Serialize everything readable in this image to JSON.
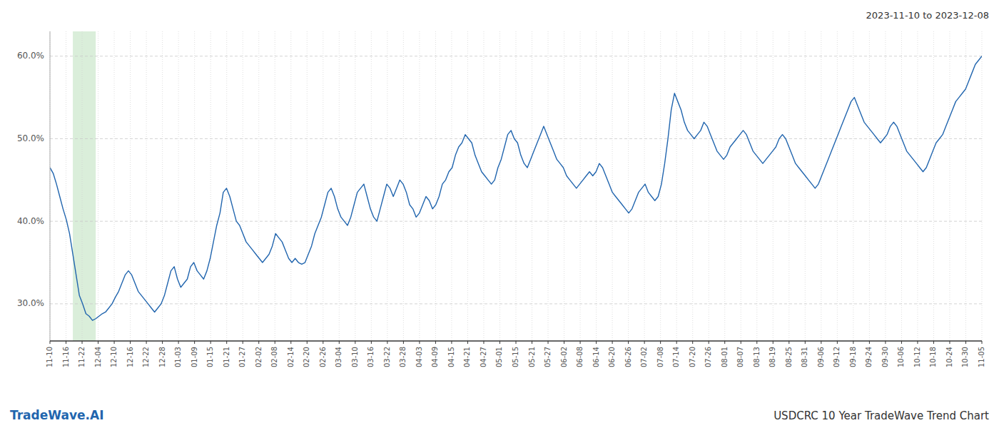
{
  "chart_data": {
    "type": "line",
    "title": "USDCRC 10 Year TradeWave Trend Chart",
    "subtitle": "2023-11-10 to 2023-12-08",
    "annotations": [
      "TradeWave.AI"
    ],
    "color": "#2165ae",
    "grid": true,
    "highlight": {
      "x": [
        7,
        14
      ],
      "color": "#daeeda"
    },
    "ylim": [
      25.5,
      63
    ],
    "yticks": [
      {
        "value": 30.0,
        "label": "30.0%"
      },
      {
        "value": 40.0,
        "label": "40.0%"
      },
      {
        "value": 50.0,
        "label": "50.0%"
      },
      {
        "value": 60.0,
        "label": "60.0%"
      }
    ],
    "xlim": [
      0,
      285
    ],
    "xticks": [
      {
        "value": 0,
        "label": "11-10"
      },
      {
        "value": 4.913793,
        "label": "11-16"
      },
      {
        "value": 9.827586,
        "label": "11-22"
      },
      {
        "value": 14.741379,
        "label": "12-04"
      },
      {
        "value": 19.655172,
        "label": "12-10"
      },
      {
        "value": 24.568966,
        "label": "12-16"
      },
      {
        "value": 29.482759,
        "label": "12-22"
      },
      {
        "value": 34.396552,
        "label": "12-28"
      },
      {
        "value": 39.310345,
        "label": "01-03"
      },
      {
        "value": 44.224138,
        "label": "01-09"
      },
      {
        "value": 49.137931,
        "label": "01-15"
      },
      {
        "value": 54.051724,
        "label": "01-21"
      },
      {
        "value": 58.965517,
        "label": "01-27"
      },
      {
        "value": 63.87931,
        "label": "02-02"
      },
      {
        "value": 68.793103,
        "label": "02-08"
      },
      {
        "value": 73.706897,
        "label": "02-14"
      },
      {
        "value": 78.62069,
        "label": "02-20"
      },
      {
        "value": 83.534483,
        "label": "02-26"
      },
      {
        "value": 88.448276,
        "label": "03-04"
      },
      {
        "value": 93.362069,
        "label": "03-10"
      },
      {
        "value": 98.275862,
        "label": "03-16"
      },
      {
        "value": 103.189655,
        "label": "03-22"
      },
      {
        "value": 108.103448,
        "label": "03-28"
      },
      {
        "value": 113.017241,
        "label": "04-03"
      },
      {
        "value": 117.931034,
        "label": "04-09"
      },
      {
        "value": 122.844828,
        "label": "04-15"
      },
      {
        "value": 127.758621,
        "label": "04-21"
      },
      {
        "value": 132.672414,
        "label": "04-27"
      },
      {
        "value": 137.586207,
        "label": "05-01"
      },
      {
        "value": 142.5,
        "label": "05-15"
      },
      {
        "value": 147.413793,
        "label": "05-21"
      },
      {
        "value": 152.327586,
        "label": "05-27"
      },
      {
        "value": 157.241379,
        "label": "06-02"
      },
      {
        "value": 162.155172,
        "label": "06-08"
      },
      {
        "value": 167.068966,
        "label": "06-14"
      },
      {
        "value": 171.982759,
        "label": "06-20"
      },
      {
        "value": 176.896552,
        "label": "06-26"
      },
      {
        "value": 181.810345,
        "label": "07-02"
      },
      {
        "value": 186.724138,
        "label": "07-08"
      },
      {
        "value": 191.637931,
        "label": "07-14"
      },
      {
        "value": 196.551724,
        "label": "07-20"
      },
      {
        "value": 201.465517,
        "label": "07-26"
      },
      {
        "value": 206.37931,
        "label": "08-01"
      },
      {
        "value": 211.293103,
        "label": "08-07"
      },
      {
        "value": 216.206897,
        "label": "08-13"
      },
      {
        "value": 221.12069,
        "label": "08-19"
      },
      {
        "value": 226.034483,
        "label": "08-25"
      },
      {
        "value": 230.948276,
        "label": "08-31"
      },
      {
        "value": 235.862069,
        "label": "09-06"
      },
      {
        "value": 240.775862,
        "label": "09-12"
      },
      {
        "value": 245.689655,
        "label": "09-18"
      },
      {
        "value": 250.603448,
        "label": "09-24"
      },
      {
        "value": 255.517241,
        "label": "09-30"
      },
      {
        "value": 260.431034,
        "label": "10-06"
      },
      {
        "value": 265.344828,
        "label": "10-12"
      },
      {
        "value": 270.258621,
        "label": "10-18"
      },
      {
        "value": 275.172414,
        "label": "10-24"
      },
      {
        "value": 280.086207,
        "label": "10-30"
      },
      {
        "value": 285,
        "label": "11-05"
      }
    ],
    "values": [
      46.5,
      45.8,
      44.5,
      43.0,
      41.5,
      40.2,
      38.5,
      36.0,
      33.5,
      31.0,
      30.0,
      28.8,
      28.5,
      28.0,
      28.2,
      28.5,
      28.8,
      29.0,
      29.5,
      30.0,
      30.8,
      31.5,
      32.5,
      33.5,
      34.0,
      33.5,
      32.5,
      31.5,
      31.0,
      30.5,
      30.0,
      29.5,
      29.0,
      29.5,
      30.0,
      31.0,
      32.5,
      34.0,
      34.5,
      33.0,
      32.0,
      32.5,
      33.0,
      34.5,
      35.0,
      34.0,
      33.5,
      33.0,
      34.0,
      35.5,
      37.5,
      39.5,
      41.0,
      43.5,
      44.0,
      43.0,
      41.5,
      40.0,
      39.5,
      38.5,
      37.5,
      37.0,
      36.5,
      36.0,
      35.5,
      35.0,
      35.5,
      36.0,
      37.0,
      38.5,
      38.0,
      37.5,
      36.5,
      35.5,
      35.0,
      35.5,
      35.0,
      34.8,
      35.0,
      36.0,
      37.0,
      38.5,
      39.5,
      40.5,
      42.0,
      43.5,
      44.0,
      43.0,
      41.5,
      40.5,
      40.0,
      39.5,
      40.5,
      42.0,
      43.5,
      44.0,
      44.5,
      43.0,
      41.5,
      40.5,
      40.0,
      41.5,
      43.0,
      44.5,
      44.0,
      43.0,
      44.0,
      45.0,
      44.5,
      43.5,
      42.0,
      41.5,
      40.5,
      41.0,
      42.0,
      43.0,
      42.5,
      41.5,
      42.0,
      43.0,
      44.5,
      45.0,
      46.0,
      46.5,
      48.0,
      49.0,
      49.5,
      50.5,
      50.0,
      49.5,
      48.0,
      47.0,
      46.0,
      45.5,
      45.0,
      44.5,
      45.0,
      46.5,
      47.5,
      49.0,
      50.5,
      51.0,
      50.0,
      49.5,
      48.0,
      47.0,
      46.5,
      47.5,
      48.5,
      49.5,
      50.5,
      51.5,
      50.5,
      49.5,
      48.5,
      47.5,
      47.0,
      46.5,
      45.5,
      45.0,
      44.5,
      44.0,
      44.5,
      45.0,
      45.5,
      46.0,
      45.5,
      46.0,
      47.0,
      46.5,
      45.5,
      44.5,
      43.5,
      43.0,
      42.5,
      42.0,
      41.5,
      41.0,
      41.5,
      42.5,
      43.5,
      44.0,
      44.5,
      43.5,
      43.0,
      42.5,
      43.0,
      44.5,
      47.0,
      50.0,
      53.5,
      55.5,
      54.5,
      53.5,
      52.0,
      51.0,
      50.5,
      50.0,
      50.5,
      51.0,
      52.0,
      51.5,
      50.5,
      49.5,
      48.5,
      48.0,
      47.5,
      48.0,
      49.0,
      49.5,
      50.0,
      50.5,
      51.0,
      50.5,
      49.5,
      48.5,
      48.0,
      47.5,
      47.0,
      47.5,
      48.0,
      48.5,
      49.0,
      50.0,
      50.5,
      50.0,
      49.0,
      48.0,
      47.0,
      46.5,
      46.0,
      45.5,
      45.0,
      44.5,
      44.0,
      44.5,
      45.5,
      46.5,
      47.5,
      48.5,
      49.5,
      50.5,
      51.5,
      52.5,
      53.5,
      54.5,
      55.0,
      54.0,
      53.0,
      52.0,
      51.5,
      51.0,
      50.5,
      50.0,
      49.5,
      50.0,
      50.5,
      51.5,
      52.0,
      51.5,
      50.5,
      49.5,
      48.5,
      48.0,
      47.5,
      47.0,
      46.5,
      46.0,
      46.5,
      47.5,
      48.5,
      49.5,
      50.0,
      50.5,
      51.5,
      52.5,
      53.5,
      54.5,
      55.0,
      55.5,
      56.0,
      57.0,
      58.0,
      59.0,
      59.5,
      60.0
    ]
  }
}
